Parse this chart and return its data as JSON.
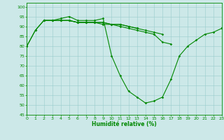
{
  "xlabel": "Humidité relative (%)",
  "xlim": [
    0,
    23
  ],
  "ylim": [
    45,
    102
  ],
  "yticks": [
    45,
    50,
    55,
    60,
    65,
    70,
    75,
    80,
    85,
    90,
    95,
    100
  ],
  "xticks": [
    0,
    1,
    2,
    3,
    4,
    5,
    6,
    7,
    8,
    9,
    10,
    11,
    12,
    13,
    14,
    15,
    16,
    17,
    18,
    19,
    20,
    21,
    22,
    23
  ],
  "background_color": "#cce8e8",
  "grid_color": "#99cccc",
  "line_color": "#008800",
  "s1": [
    80,
    88,
    93,
    93,
    94,
    95,
    93,
    93,
    93,
    94,
    75,
    65,
    57,
    54,
    51,
    52,
    54,
    63,
    75,
    80,
    83,
    86,
    87,
    89
  ],
  "s2": [
    80,
    88,
    93,
    93,
    93,
    93,
    92,
    92,
    92,
    91,
    91,
    90,
    89,
    88,
    87,
    86,
    82,
    81,
    null,
    null,
    null,
    null,
    null,
    89
  ],
  "s3": [
    null,
    null,
    93,
    93,
    93,
    93,
    92,
    92,
    92,
    92,
    91,
    91,
    90,
    89,
    88,
    87,
    86,
    null,
    null,
    null,
    null,
    null,
    null,
    89
  ],
  "s4": [
    null,
    null,
    93,
    93,
    93,
    93,
    92,
    92,
    92,
    92,
    91,
    91,
    90,
    89,
    null,
    null,
    null,
    null,
    null,
    null,
    null,
    null,
    null,
    89
  ]
}
